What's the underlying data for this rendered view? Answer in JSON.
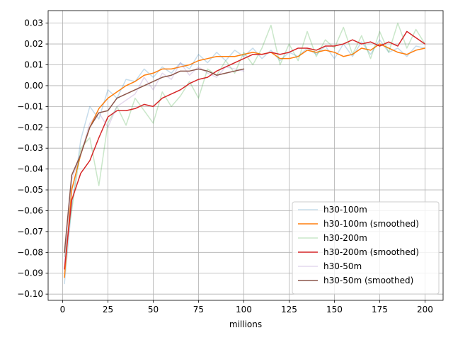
{
  "chart_data": {
    "type": "line",
    "xlabel": "millions",
    "ylabel": "",
    "xlim": [
      -8,
      210
    ],
    "ylim": [
      -0.103,
      0.036
    ],
    "xticks": [
      0,
      25,
      50,
      75,
      100,
      125,
      150,
      175,
      200
    ],
    "xtick_labels": [
      "0",
      "25",
      "50",
      "75",
      "100",
      "125",
      "150",
      "175",
      "200"
    ],
    "yticks": [
      -0.1,
      -0.09,
      -0.08,
      -0.07,
      -0.06,
      -0.05,
      -0.04,
      -0.03,
      -0.02,
      -0.01,
      0.0,
      0.01,
      0.02,
      0.03
    ],
    "ytick_labels": [
      "−0.10",
      "−0.09",
      "−0.08",
      "−0.07",
      "−0.06",
      "−0.05",
      "−0.04",
      "−0.03",
      "−0.02",
      "−0.01",
      "0.00",
      "0.01",
      "0.02",
      "0.03"
    ],
    "grid": true,
    "legend_position": "lower-right",
    "series": [
      {
        "name": "h30-100m",
        "color": "#1f77b4",
        "opacity": 0.25,
        "x": [
          1,
          5,
          10,
          15,
          20,
          25,
          30,
          35,
          40,
          45,
          50,
          55,
          60,
          65,
          70,
          75,
          80,
          85,
          90,
          95,
          100,
          105,
          110,
          115,
          120,
          125,
          130,
          135,
          140,
          145,
          150,
          155,
          160,
          165,
          170,
          175,
          180,
          185,
          190,
          195,
          200
        ],
        "y": [
          -0.095,
          -0.058,
          -0.026,
          -0.01,
          -0.016,
          -0.002,
          -0.006,
          0.003,
          0.002,
          0.008,
          0.004,
          0.009,
          0.006,
          0.011,
          0.008,
          0.015,
          0.011,
          0.016,
          0.012,
          0.017,
          0.014,
          0.018,
          0.013,
          0.017,
          0.012,
          0.016,
          0.014,
          0.018,
          0.015,
          0.019,
          0.013,
          0.02,
          0.014,
          0.021,
          0.015,
          0.022,
          0.016,
          0.018,
          0.014,
          0.019,
          0.018
        ]
      },
      {
        "name": "h30-100m (smoothed)",
        "color": "#ff7f0e",
        "opacity": 1,
        "x": [
          1,
          5,
          10,
          15,
          20,
          25,
          30,
          35,
          40,
          45,
          50,
          55,
          60,
          65,
          70,
          75,
          80,
          85,
          90,
          95,
          100,
          105,
          110,
          115,
          120,
          125,
          130,
          135,
          140,
          145,
          150,
          155,
          160,
          165,
          170,
          175,
          180,
          185,
          190,
          195,
          200
        ],
        "y": [
          -0.092,
          -0.05,
          -0.033,
          -0.02,
          -0.011,
          -0.006,
          -0.003,
          0.0,
          0.002,
          0.005,
          0.006,
          0.008,
          0.008,
          0.009,
          0.01,
          0.012,
          0.013,
          0.014,
          0.014,
          0.014,
          0.015,
          0.016,
          0.015,
          0.016,
          0.013,
          0.013,
          0.014,
          0.017,
          0.016,
          0.017,
          0.016,
          0.014,
          0.015,
          0.018,
          0.017,
          0.02,
          0.018,
          0.016,
          0.015,
          0.017,
          0.018
        ]
      },
      {
        "name": "h30-200m",
        "color": "#2ca02c",
        "opacity": 0.25,
        "x": [
          1,
          5,
          10,
          15,
          20,
          25,
          30,
          35,
          40,
          45,
          50,
          55,
          60,
          65,
          70,
          75,
          80,
          85,
          90,
          95,
          100,
          105,
          110,
          115,
          120,
          125,
          130,
          135,
          140,
          145,
          150,
          155,
          160,
          165,
          170,
          175,
          180,
          185,
          190,
          195,
          200
        ],
        "y": [
          -0.082,
          -0.06,
          -0.03,
          -0.025,
          -0.048,
          -0.018,
          -0.01,
          -0.019,
          -0.006,
          -0.012,
          -0.018,
          -0.003,
          -0.01,
          -0.005,
          0.002,
          -0.006,
          0.008,
          0.005,
          0.012,
          0.006,
          0.016,
          0.01,
          0.018,
          0.029,
          0.01,
          0.02,
          0.012,
          0.026,
          0.014,
          0.022,
          0.018,
          0.028,
          0.015,
          0.024,
          0.013,
          0.026,
          0.016,
          0.03,
          0.018,
          0.027,
          0.02
        ]
      },
      {
        "name": "h30-200m (smoothed)",
        "color": "#d62728",
        "opacity": 1,
        "x": [
          1,
          5,
          10,
          15,
          20,
          25,
          30,
          35,
          40,
          45,
          50,
          55,
          60,
          65,
          70,
          75,
          80,
          85,
          90,
          95,
          100,
          105,
          110,
          115,
          120,
          125,
          130,
          135,
          140,
          145,
          150,
          155,
          160,
          165,
          170,
          175,
          180,
          185,
          190,
          195,
          200
        ],
        "y": [
          -0.088,
          -0.055,
          -0.042,
          -0.036,
          -0.025,
          -0.015,
          -0.012,
          -0.012,
          -0.011,
          -0.009,
          -0.01,
          -0.006,
          -0.004,
          -0.002,
          0.001,
          0.003,
          0.004,
          0.007,
          0.009,
          0.011,
          0.013,
          0.015,
          0.015,
          0.016,
          0.015,
          0.016,
          0.018,
          0.018,
          0.017,
          0.019,
          0.019,
          0.02,
          0.022,
          0.02,
          0.021,
          0.019,
          0.021,
          0.019,
          0.026,
          0.023,
          0.02
        ]
      },
      {
        "name": "h30-50m",
        "color": "#9467bd",
        "opacity": 0.25,
        "x": [
          1,
          5,
          10,
          15,
          20,
          25,
          30,
          35,
          40,
          45,
          50,
          55,
          60,
          65,
          70,
          75,
          80,
          85,
          90,
          95,
          100
        ],
        "y": [
          -0.085,
          -0.045,
          -0.033,
          -0.018,
          -0.013,
          -0.02,
          -0.01,
          -0.007,
          -0.004,
          0.004,
          -0.002,
          0.006,
          0.003,
          0.011,
          0.005,
          0.009,
          0.006,
          0.004,
          0.009,
          0.008,
          0.007
        ]
      },
      {
        "name": "h30-50m (smoothed)",
        "color": "#8c564b",
        "opacity": 1,
        "x": [
          1,
          5,
          10,
          15,
          20,
          25,
          30,
          35,
          40,
          45,
          50,
          55,
          60,
          65,
          70,
          75,
          80,
          85,
          90,
          95,
          100
        ],
        "y": [
          -0.08,
          -0.043,
          -0.033,
          -0.02,
          -0.013,
          -0.012,
          -0.006,
          -0.004,
          -0.002,
          0.0,
          0.002,
          0.004,
          0.005,
          0.007,
          0.007,
          0.008,
          0.007,
          0.005,
          0.006,
          0.007,
          0.008
        ]
      }
    ]
  }
}
